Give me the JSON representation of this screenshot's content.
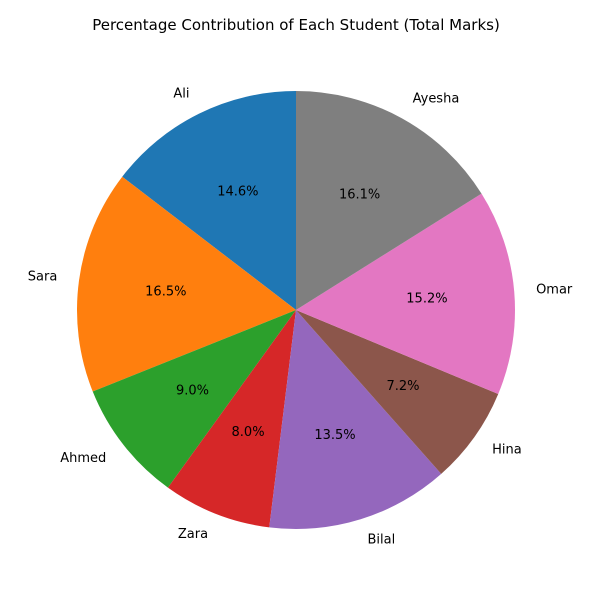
{
  "chart_data": {
    "type": "pie",
    "title": "Percentage Contribution of Each Student (Total Marks)",
    "start_angle_deg": 90,
    "direction": "counterclockwise",
    "slices": [
      {
        "label": "Ali",
        "percent": 14.6,
        "percent_label": "14.6%",
        "color": "#1f77b4"
      },
      {
        "label": "Sara",
        "percent": 16.5,
        "percent_label": "16.5%",
        "color": "#ff7f0e"
      },
      {
        "label": "Ahmed",
        "percent": 9.0,
        "percent_label": "9.0%",
        "color": "#2ca02c"
      },
      {
        "label": "Zara",
        "percent": 8.0,
        "percent_label": "8.0%",
        "color": "#d62728"
      },
      {
        "label": "Bilal",
        "percent": 13.5,
        "percent_label": "13.5%",
        "color": "#9467bd"
      },
      {
        "label": "Hina",
        "percent": 7.2,
        "percent_label": "7.2%",
        "color": "#8c564b"
      },
      {
        "label": "Omar",
        "percent": 15.2,
        "percent_label": "15.2%",
        "color": "#e377c2"
      },
      {
        "label": "Ayesha",
        "percent": 16.1,
        "percent_label": "16.1%",
        "color": "#7f7f7f"
      }
    ]
  }
}
